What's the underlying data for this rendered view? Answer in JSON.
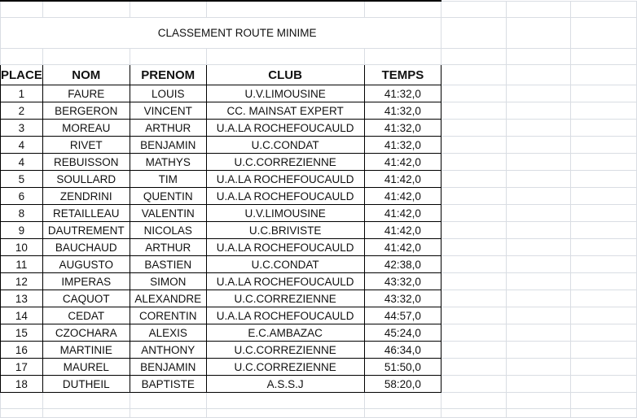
{
  "title": "CLASSEMENT ROUTE MINIME",
  "headers": [
    "PLACE",
    "NOM",
    "PRENOM",
    "CLUB",
    "TEMPS"
  ],
  "rows": [
    [
      "1",
      "FAURE",
      "LOUIS",
      "U.V.LIMOUSINE",
      "41:32,0"
    ],
    [
      "2",
      "BERGERON",
      "VINCENT",
      "CC. MAINSAT EXPERT",
      "41:32,0"
    ],
    [
      "3",
      "MOREAU",
      "ARTHUR",
      "U.A.LA ROCHEFOUCAULD",
      "41:32,0"
    ],
    [
      "4",
      "RIVET",
      "BENJAMIN",
      "U.C.CONDAT",
      "41:32,0"
    ],
    [
      "4",
      "REBUISSON",
      "MATHYS",
      "U.C.CORREZIENNE",
      "41:42,0"
    ],
    [
      "5",
      "SOULLARD",
      "TIM",
      "U.A.LA ROCHEFOUCAULD",
      "41:42,0"
    ],
    [
      "6",
      "ZENDRINI",
      "QUENTIN",
      "U.A.LA ROCHEFOUCAULD",
      "41:42,0"
    ],
    [
      "8",
      "RETAILLEAU",
      "VALENTIN",
      "U.V.LIMOUSINE",
      "41:42,0"
    ],
    [
      "9",
      "DAUTREMENT",
      "NICOLAS",
      "U.C.BRIVISTE",
      "41:42,0"
    ],
    [
      "10",
      "BAUCHAUD",
      "ARTHUR",
      "U.A.LA ROCHEFOUCAULD",
      "41:42,0"
    ],
    [
      "11",
      "AUGUSTO",
      "BASTIEN",
      "U.C.CONDAT",
      "42:38,0"
    ],
    [
      "12",
      "IMPERAS",
      "SIMON",
      "U.A.LA ROCHEFOUCAULD",
      "43:32,0"
    ],
    [
      "13",
      "CAQUOT",
      "ALEXANDRE",
      "U.C.CORREZIENNE",
      "43:32,0"
    ],
    [
      "14",
      "CEDAT",
      "CORENTIN",
      "U.A.LA ROCHEFOUCAULD",
      "44:57,0"
    ],
    [
      "15",
      "CZOCHARA",
      "ALEXIS",
      "E.C.AMBAZAC",
      "45:24,0"
    ],
    [
      "16",
      "MARTINIE",
      "ANTHONY",
      "U.C.CORREZIENNE",
      "46:34,0"
    ],
    [
      "17",
      "MAUREL",
      "BENJAMIN",
      "U.C.CORREZIENNE",
      "51:50,0"
    ],
    [
      "18",
      "DUTHEIL",
      "BAPTISTE",
      "A.S.S.J",
      "58:20,0"
    ]
  ]
}
